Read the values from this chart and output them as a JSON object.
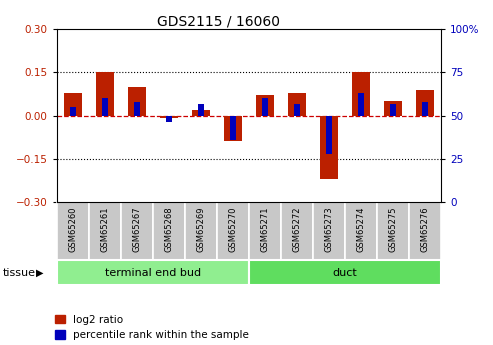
{
  "title": "GDS2115 / 16060",
  "samples": [
    "GSM65260",
    "GSM65261",
    "GSM65267",
    "GSM65268",
    "GSM65269",
    "GSM65270",
    "GSM65271",
    "GSM65272",
    "GSM65273",
    "GSM65274",
    "GSM65275",
    "GSM65276"
  ],
  "log2_ratio": [
    0.08,
    0.15,
    0.1,
    -0.01,
    0.02,
    -0.09,
    0.07,
    0.08,
    -0.22,
    0.15,
    0.05,
    0.09
  ],
  "pct_raw": [
    55,
    60,
    58,
    46,
    57,
    36,
    60,
    57,
    28,
    63,
    57,
    58
  ],
  "groups": [
    {
      "label": "terminal end bud",
      "start": 0,
      "end": 6,
      "color": "#90ee90"
    },
    {
      "label": "duct",
      "start": 6,
      "end": 12,
      "color": "#5fdd5f"
    }
  ],
  "ylim": [
    -0.3,
    0.3
  ],
  "yticks_left": [
    -0.3,
    -0.15,
    0.0,
    0.15,
    0.3
  ],
  "yticks_right_labels": [
    "0",
    "25",
    "50",
    "75",
    "100%"
  ],
  "red_color": "#bb2000",
  "blue_color": "#0000bb",
  "dashed_color": "#cc0000",
  "sample_box_color": "#c8c8c8",
  "tissue_label": "tissue",
  "legend_red": "log2 ratio",
  "legend_blue": "percentile rank within the sample"
}
